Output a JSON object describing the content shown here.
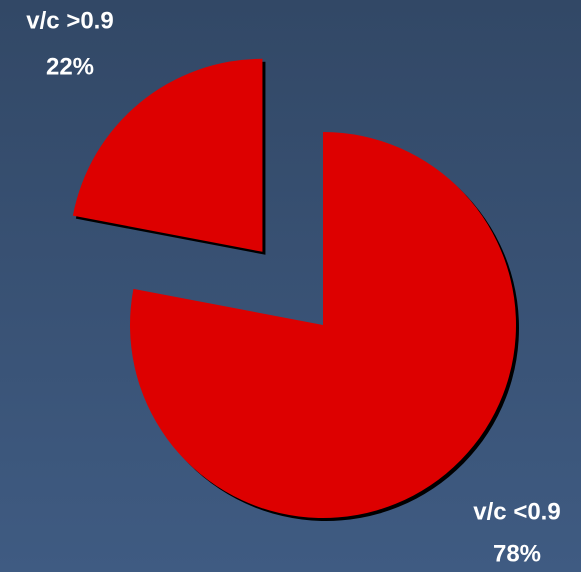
{
  "chart_data": {
    "type": "pie",
    "categories": [
      "v/c >0.9",
      "v/c <0.9"
    ],
    "values": [
      22,
      78
    ],
    "value_labels": [
      "22%",
      "78%"
    ],
    "colors": [
      "#dd0000",
      "#dd0000"
    ]
  }
}
